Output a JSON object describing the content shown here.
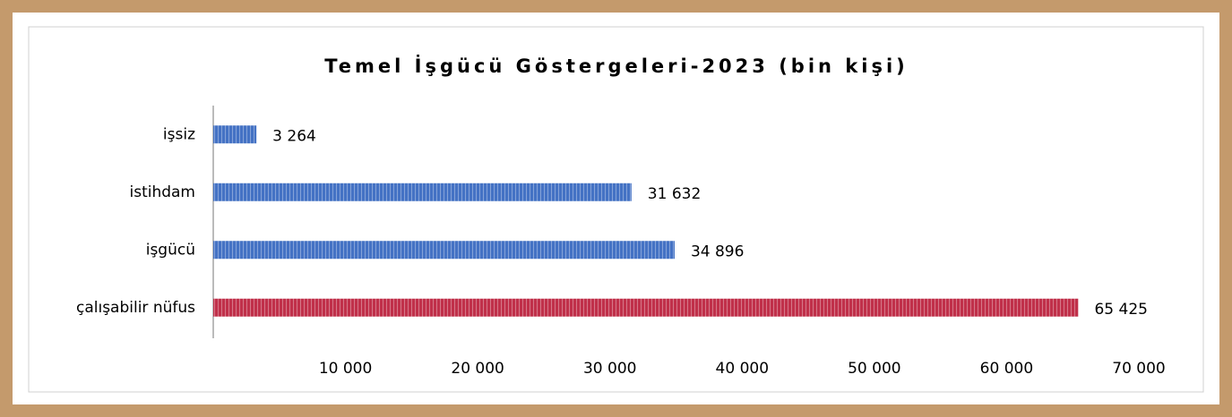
{
  "chart_data": {
    "type": "bar",
    "orientation": "horizontal",
    "title": "Temel İşgücü Göstergeleri-2023  (bin kişi)",
    "categories": [
      "işsiz",
      "istihdam",
      "işgücü",
      "çalışabilir nüfus"
    ],
    "values": [
      3264,
      31632,
      34896,
      65425
    ],
    "value_labels": [
      "3 264",
      "31 632",
      "34 896",
      "65 425"
    ],
    "colors": [
      "#4472c4",
      "#4472c4",
      "#4472c4",
      "#c0304a"
    ],
    "xlim": [
      0,
      70000
    ],
    "xticks": [
      {
        "value": 10000,
        "label": "10 000"
      },
      {
        "value": 20000,
        "label": "20 000"
      },
      {
        "value": 30000,
        "label": "30 000"
      },
      {
        "value": 40000,
        "label": "40 000"
      },
      {
        "value": 50000,
        "label": "50 000"
      },
      {
        "value": 60000,
        "label": "60 000"
      },
      {
        "value": 70000,
        "label": "70 000"
      }
    ],
    "grid": false
  }
}
